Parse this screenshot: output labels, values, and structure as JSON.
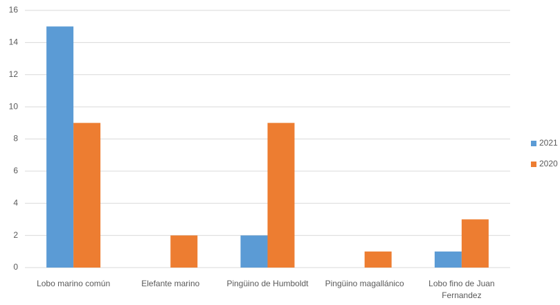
{
  "chart_data": {
    "type": "bar",
    "categories": [
      "Lobo marino común",
      "Elefante marino",
      "Pingüino de Humboldt",
      "Pingüino magallánico",
      "Lobo fino de Juan Fernandez"
    ],
    "series": [
      {
        "name": "2021",
        "color": "#5b9bd5",
        "values": [
          15,
          0,
          2,
          0,
          1
        ]
      },
      {
        "name": "2020",
        "color": "#ed7d31",
        "values": [
          9,
          2,
          9,
          1,
          3
        ]
      }
    ],
    "ylim": [
      0,
      16
    ],
    "yticks": [
      0,
      2,
      4,
      6,
      8,
      10,
      12,
      14,
      16
    ],
    "grid": true,
    "legend": "right"
  }
}
